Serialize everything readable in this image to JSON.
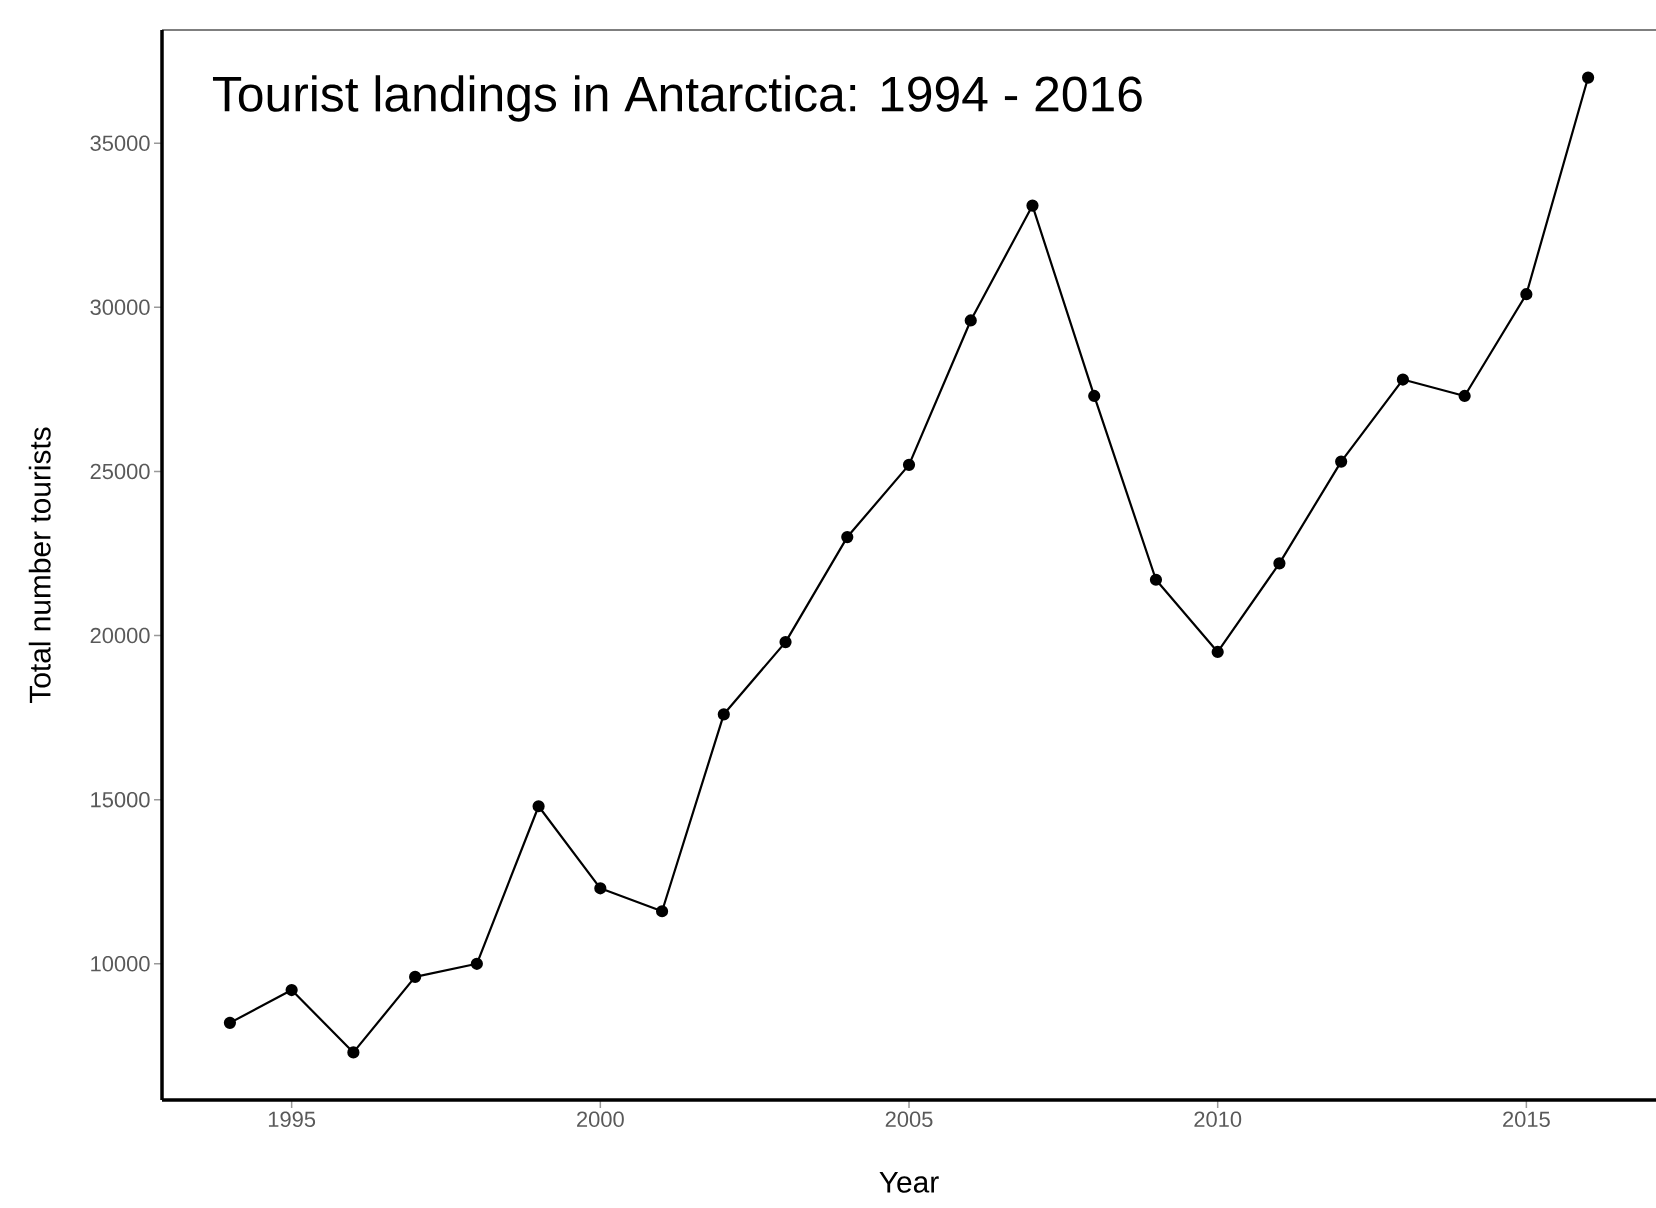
{
  "chart_data": {
    "type": "line",
    "title": "Tourist landings in Antarctica: 1994 - 2016",
    "xlabel": "Year",
    "ylabel": "Total number tourists",
    "x": [
      1994,
      1995,
      1996,
      1997,
      1998,
      1999,
      2000,
      2001,
      2002,
      2003,
      2004,
      2005,
      2006,
      2007,
      2008,
      2009,
      2010,
      2011,
      2012,
      2013,
      2014,
      2015,
      2016
    ],
    "series": [
      {
        "color": "#000000",
        "values": [
          8200,
          9200,
          7300,
          9600,
          10000,
          14800,
          12300,
          11600,
          17600,
          19800,
          23000,
          25200,
          29600,
          33100,
          27300,
          21700,
          19500,
          22200,
          25300,
          27800,
          27300,
          30400,
          37000
        ]
      }
    ],
    "xlim": [
      1992.9,
      2017.1
    ],
    "ylim": [
      5850,
      38450
    ],
    "xticks": [
      1995,
      2000,
      2005,
      2010,
      2015
    ],
    "yticks": [
      10000,
      15000,
      20000,
      25000,
      30000,
      35000
    ],
    "grid": false,
    "marker": "circle",
    "line_style": "solid"
  }
}
